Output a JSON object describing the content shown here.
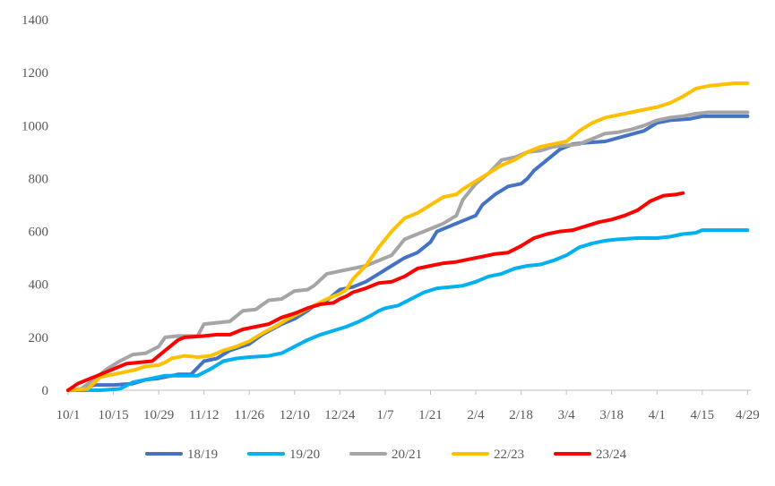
{
  "chart_data": {
    "type": "line",
    "title": "",
    "xlabel": "",
    "ylabel": "",
    "ylim": [
      0,
      1400
    ],
    "yticks": [
      0,
      200,
      400,
      600,
      800,
      1000,
      1200,
      1400
    ],
    "xticks": [
      {
        "label": "10/1",
        "day": 0
      },
      {
        "label": "10/15",
        "day": 14
      },
      {
        "label": "10/29",
        "day": 28
      },
      {
        "label": "11/12",
        "day": 42
      },
      {
        "label": "11/26",
        "day": 56
      },
      {
        "label": "12/10",
        "day": 70
      },
      {
        "label": "12/24",
        "day": 84
      },
      {
        "label": "1/7",
        "day": 98
      },
      {
        "label": "1/21",
        "day": 112
      },
      {
        "label": "2/4",
        "day": 126
      },
      {
        "label": "2/18",
        "day": 140
      },
      {
        "label": "3/4",
        "day": 154
      },
      {
        "label": "3/18",
        "day": 168
      },
      {
        "label": "4/1",
        "day": 182
      },
      {
        "label": "4/15",
        "day": 196
      },
      {
        "label": "4/29",
        "day": 210
      }
    ],
    "xlim": [
      0,
      211
    ],
    "x_unit": "days since 10/1",
    "grid": false,
    "legend_position": "bottom",
    "series": [
      {
        "name": "18/19",
        "color": "#4472C4",
        "points": [
          [
            0,
            0
          ],
          [
            5,
            5
          ],
          [
            8,
            20
          ],
          [
            14,
            20
          ],
          [
            20,
            25
          ],
          [
            24,
            40
          ],
          [
            28,
            45
          ],
          [
            34,
            60
          ],
          [
            38,
            60
          ],
          [
            42,
            110
          ],
          [
            46,
            120
          ],
          [
            50,
            150
          ],
          [
            56,
            175
          ],
          [
            60,
            210
          ],
          [
            66,
            250
          ],
          [
            70,
            270
          ],
          [
            74,
            300
          ],
          [
            76,
            320
          ],
          [
            80,
            340
          ],
          [
            84,
            380
          ],
          [
            88,
            390
          ],
          [
            92,
            410
          ],
          [
            96,
            440
          ],
          [
            100,
            470
          ],
          [
            104,
            500
          ],
          [
            108,
            520
          ],
          [
            112,
            560
          ],
          [
            114,
            600
          ],
          [
            118,
            620
          ],
          [
            122,
            640
          ],
          [
            126,
            660
          ],
          [
            128,
            700
          ],
          [
            132,
            740
          ],
          [
            136,
            770
          ],
          [
            140,
            780
          ],
          [
            142,
            800
          ],
          [
            144,
            830
          ],
          [
            148,
            870
          ],
          [
            152,
            910
          ],
          [
            156,
            930
          ],
          [
            160,
            935
          ],
          [
            166,
            940
          ],
          [
            172,
            960
          ],
          [
            178,
            980
          ],
          [
            182,
            1010
          ],
          [
            186,
            1020
          ],
          [
            192,
            1025
          ],
          [
            196,
            1035
          ],
          [
            210,
            1035
          ]
        ]
      },
      {
        "name": "19/20",
        "color": "#00B0F0",
        "points": [
          [
            0,
            0
          ],
          [
            10,
            0
          ],
          [
            16,
            5
          ],
          [
            20,
            30
          ],
          [
            24,
            40
          ],
          [
            30,
            55
          ],
          [
            40,
            55
          ],
          [
            44,
            80
          ],
          [
            48,
            110
          ],
          [
            52,
            120
          ],
          [
            56,
            125
          ],
          [
            62,
            130
          ],
          [
            66,
            140
          ],
          [
            70,
            165
          ],
          [
            74,
            190
          ],
          [
            78,
            210
          ],
          [
            82,
            225
          ],
          [
            86,
            240
          ],
          [
            90,
            260
          ],
          [
            94,
            285
          ],
          [
            96,
            300
          ],
          [
            98,
            310
          ],
          [
            102,
            320
          ],
          [
            106,
            345
          ],
          [
            110,
            370
          ],
          [
            114,
            385
          ],
          [
            118,
            390
          ],
          [
            122,
            395
          ],
          [
            126,
            410
          ],
          [
            130,
            430
          ],
          [
            134,
            440
          ],
          [
            138,
            460
          ],
          [
            142,
            470
          ],
          [
            146,
            475
          ],
          [
            150,
            490
          ],
          [
            154,
            510
          ],
          [
            158,
            540
          ],
          [
            162,
            555
          ],
          [
            166,
            565
          ],
          [
            170,
            570
          ],
          [
            176,
            575
          ],
          [
            182,
            575
          ],
          [
            186,
            580
          ],
          [
            190,
            590
          ],
          [
            194,
            595
          ],
          [
            196,
            605
          ],
          [
            210,
            605
          ]
        ]
      },
      {
        "name": "20/21",
        "color": "#A5A5A5",
        "points": [
          [
            0,
            0
          ],
          [
            4,
            5
          ],
          [
            8,
            40
          ],
          [
            12,
            80
          ],
          [
            16,
            110
          ],
          [
            20,
            135
          ],
          [
            24,
            140
          ],
          [
            28,
            165
          ],
          [
            30,
            200
          ],
          [
            34,
            205
          ],
          [
            40,
            205
          ],
          [
            42,
            250
          ],
          [
            46,
            255
          ],
          [
            50,
            260
          ],
          [
            54,
            300
          ],
          [
            58,
            305
          ],
          [
            62,
            340
          ],
          [
            66,
            345
          ],
          [
            70,
            375
          ],
          [
            74,
            380
          ],
          [
            76,
            395
          ],
          [
            80,
            440
          ],
          [
            84,
            450
          ],
          [
            88,
            460
          ],
          [
            92,
            470
          ],
          [
            96,
            490
          ],
          [
            100,
            510
          ],
          [
            104,
            570
          ],
          [
            108,
            590
          ],
          [
            112,
            610
          ],
          [
            116,
            630
          ],
          [
            120,
            660
          ],
          [
            122,
            720
          ],
          [
            126,
            780
          ],
          [
            130,
            820
          ],
          [
            134,
            870
          ],
          [
            138,
            880
          ],
          [
            142,
            900
          ],
          [
            146,
            905
          ],
          [
            150,
            920
          ],
          [
            154,
            925
          ],
          [
            158,
            930
          ],
          [
            162,
            950
          ],
          [
            166,
            970
          ],
          [
            170,
            975
          ],
          [
            174,
            985
          ],
          [
            178,
            1000
          ],
          [
            182,
            1020
          ],
          [
            186,
            1030
          ],
          [
            190,
            1035
          ],
          [
            194,
            1045
          ],
          [
            198,
            1050
          ],
          [
            210,
            1050
          ]
        ]
      },
      {
        "name": "22/23",
        "color": "#FFC000",
        "points": [
          [
            0,
            0
          ],
          [
            6,
            5
          ],
          [
            10,
            50
          ],
          [
            14,
            60
          ],
          [
            20,
            75
          ],
          [
            24,
            90
          ],
          [
            28,
            95
          ],
          [
            30,
            105
          ],
          [
            32,
            120
          ],
          [
            36,
            130
          ],
          [
            40,
            125
          ],
          [
            44,
            130
          ],
          [
            48,
            150
          ],
          [
            52,
            165
          ],
          [
            56,
            185
          ],
          [
            60,
            215
          ],
          [
            64,
            240
          ],
          [
            68,
            270
          ],
          [
            72,
            295
          ],
          [
            76,
            320
          ],
          [
            80,
            345
          ],
          [
            84,
            365
          ],
          [
            86,
            380
          ],
          [
            88,
            420
          ],
          [
            92,
            470
          ],
          [
            96,
            540
          ],
          [
            100,
            600
          ],
          [
            104,
            650
          ],
          [
            108,
            670
          ],
          [
            112,
            700
          ],
          [
            116,
            730
          ],
          [
            120,
            740
          ],
          [
            122,
            760
          ],
          [
            126,
            790
          ],
          [
            130,
            820
          ],
          [
            134,
            850
          ],
          [
            138,
            870
          ],
          [
            142,
            900
          ],
          [
            146,
            920
          ],
          [
            150,
            930
          ],
          [
            154,
            940
          ],
          [
            158,
            980
          ],
          [
            162,
            1010
          ],
          [
            166,
            1030
          ],
          [
            170,
            1040
          ],
          [
            174,
            1050
          ],
          [
            178,
            1060
          ],
          [
            182,
            1070
          ],
          [
            186,
            1085
          ],
          [
            190,
            1110
          ],
          [
            194,
            1140
          ],
          [
            198,
            1150
          ],
          [
            202,
            1155
          ],
          [
            206,
            1160
          ],
          [
            210,
            1160
          ]
        ]
      },
      {
        "name": "23/24",
        "color": "#FF0000",
        "points": [
          [
            0,
            0
          ],
          [
            3,
            25
          ],
          [
            6,
            40
          ],
          [
            10,
            60
          ],
          [
            14,
            80
          ],
          [
            18,
            100
          ],
          [
            22,
            105
          ],
          [
            26,
            110
          ],
          [
            28,
            130
          ],
          [
            30,
            150
          ],
          [
            32,
            170
          ],
          [
            34,
            190
          ],
          [
            36,
            200
          ],
          [
            42,
            205
          ],
          [
            46,
            210
          ],
          [
            50,
            210
          ],
          [
            54,
            230
          ],
          [
            58,
            240
          ],
          [
            62,
            250
          ],
          [
            66,
            275
          ],
          [
            70,
            290
          ],
          [
            74,
            310
          ],
          [
            78,
            325
          ],
          [
            82,
            330
          ],
          [
            84,
            345
          ],
          [
            86,
            355
          ],
          [
            88,
            370
          ],
          [
            92,
            385
          ],
          [
            96,
            405
          ],
          [
            100,
            410
          ],
          [
            104,
            430
          ],
          [
            108,
            460
          ],
          [
            112,
            470
          ],
          [
            116,
            480
          ],
          [
            120,
            485
          ],
          [
            124,
            495
          ],
          [
            128,
            505
          ],
          [
            132,
            515
          ],
          [
            136,
            520
          ],
          [
            140,
            545
          ],
          [
            144,
            575
          ],
          [
            148,
            590
          ],
          [
            152,
            600
          ],
          [
            156,
            605
          ],
          [
            160,
            620
          ],
          [
            164,
            635
          ],
          [
            168,
            645
          ],
          [
            172,
            660
          ],
          [
            176,
            680
          ],
          [
            180,
            715
          ],
          [
            184,
            735
          ],
          [
            188,
            740
          ],
          [
            190,
            745
          ]
        ]
      }
    ]
  }
}
